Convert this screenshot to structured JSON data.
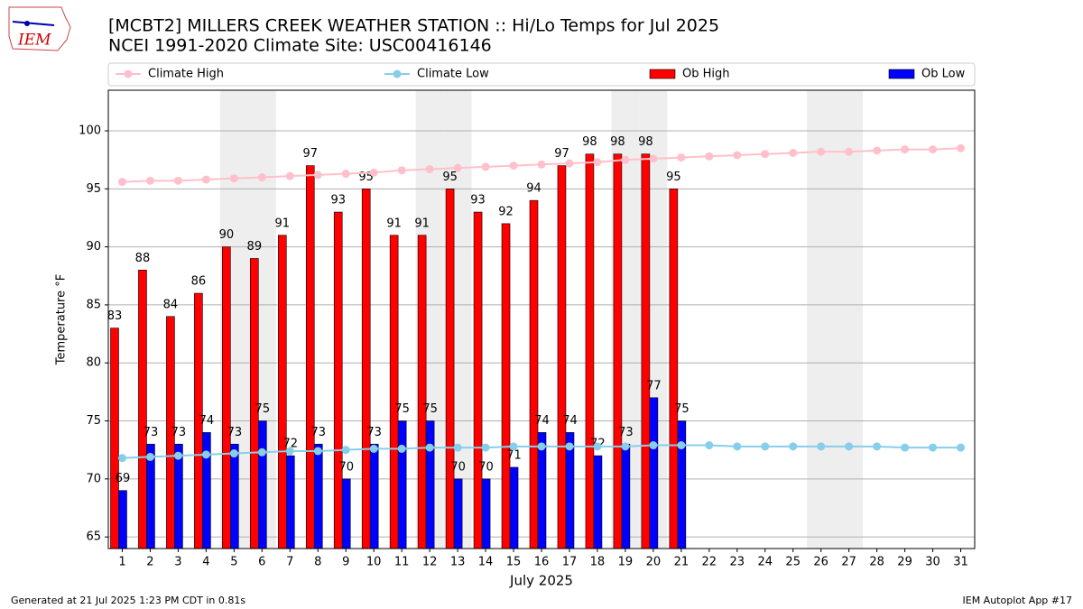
{
  "chart_data": {
    "type": "bar",
    "title": "[MCBT2] MILLERS CREEK WEATHER STATION :: Hi/Lo Temps for Jul 2025",
    "subtitle": "NCEI 1991-2020 Climate Site: USC00416146",
    "y_label": "Temperature °F",
    "x_label": "July 2025",
    "footer_left": "Generated at 21 Jul 2025 1:23 PM CDT in 0.81s",
    "footer_right": "IEM Autoplot App #17",
    "logo": "IEM",
    "x": [
      1,
      2,
      3,
      4,
      5,
      6,
      7,
      8,
      9,
      10,
      11,
      12,
      13,
      14,
      15,
      16,
      17,
      18,
      19,
      20,
      21,
      22,
      23,
      24,
      25,
      26,
      27,
      28,
      29,
      30,
      31
    ],
    "xlim": [
      0.5,
      31.5
    ],
    "xticks": [
      1,
      2,
      3,
      4,
      5,
      6,
      7,
      8,
      9,
      10,
      11,
      12,
      13,
      14,
      15,
      16,
      17,
      18,
      19,
      20,
      21,
      22,
      23,
      24,
      25,
      26,
      27,
      28,
      29,
      30,
      31
    ],
    "ylim": [
      64,
      103.5
    ],
    "yticks": [
      65,
      70,
      75,
      80,
      85,
      90,
      95,
      100
    ],
    "grid": true,
    "shaded_days": [
      5,
      6,
      12,
      13,
      19,
      20,
      26,
      27
    ],
    "legend": "top",
    "series": [
      {
        "name": "Climate High",
        "style": "line",
        "color": "#ffc0cb",
        "values": [
          95.6,
          95.7,
          95.7,
          95.8,
          95.9,
          96.0,
          96.1,
          96.2,
          96.3,
          96.4,
          96.6,
          96.7,
          96.8,
          96.9,
          97.0,
          97.1,
          97.2,
          97.3,
          97.5,
          97.6,
          97.7,
          97.8,
          97.9,
          98.0,
          98.1,
          98.2,
          98.2,
          98.3,
          98.4,
          98.4,
          98.5
        ]
      },
      {
        "name": "Climate Low",
        "style": "line",
        "color": "#87ceeb",
        "values": [
          71.8,
          71.9,
          72.0,
          72.1,
          72.2,
          72.3,
          72.4,
          72.4,
          72.5,
          72.6,
          72.6,
          72.7,
          72.7,
          72.7,
          72.8,
          72.8,
          72.8,
          72.8,
          72.8,
          72.9,
          72.9,
          72.9,
          72.8,
          72.8,
          72.8,
          72.8,
          72.8,
          72.8,
          72.7,
          72.7,
          72.7
        ]
      },
      {
        "name": "Ob High",
        "style": "bar",
        "color": "#ff0000",
        "values": [
          83,
          88,
          84,
          86,
          90,
          89,
          91,
          97,
          93,
          95,
          91,
          91,
          95,
          93,
          92,
          94,
          97,
          98,
          98,
          98,
          95,
          null,
          null,
          null,
          null,
          null,
          null,
          null,
          null,
          null,
          null
        ]
      },
      {
        "name": "Ob Low",
        "style": "bar",
        "color": "#0000ff",
        "values": [
          69,
          73,
          73,
          74,
          73,
          75,
          72,
          73,
          70,
          73,
          75,
          75,
          70,
          70,
          71,
          74,
          74,
          72,
          73,
          77,
          75,
          null,
          null,
          null,
          null,
          null,
          null,
          null,
          null,
          null,
          null
        ]
      }
    ]
  }
}
